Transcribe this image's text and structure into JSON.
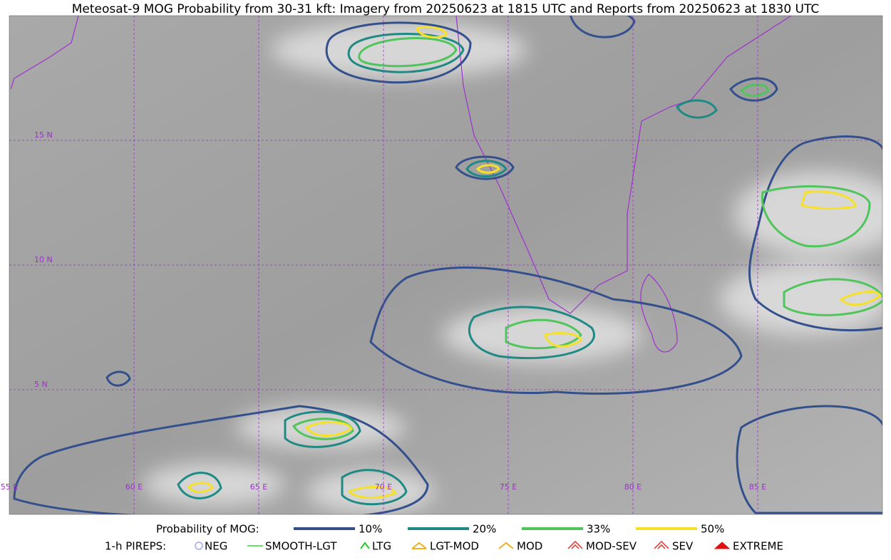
{
  "header": {
    "title": "Meteosat-9 MOG Probability from 30-31 kft: Imagery from 20250623 at 1815 UTC and Reports from 20250623 at 1830 UTC"
  },
  "map": {
    "lat_labels": [
      "15 N",
      "10 N",
      "5 N"
    ],
    "lon_labels": [
      "55 E",
      "60 E",
      "65 E",
      "70 E",
      "75 E",
      "80 E",
      "85 E"
    ]
  },
  "legend": {
    "probability": {
      "title": "Probability of MOG:",
      "items": [
        {
          "label": "10%",
          "color": "#34508c"
        },
        {
          "label": "20%",
          "color": "#1f8a84"
        },
        {
          "label": "33%",
          "color": "#4fc55c"
        },
        {
          "label": "50%",
          "color": "#f5e12a"
        }
      ]
    },
    "pireps": {
      "title": "1-h PIREPS:",
      "items": [
        {
          "label": "NEG",
          "color": "#b8b8f0"
        },
        {
          "label": "SMOOTH-LGT",
          "color": "#33dd33"
        },
        {
          "label": "LTG",
          "color": "#22cc22"
        },
        {
          "label": "LGT-MOD",
          "color": "#f0b020"
        },
        {
          "label": "MOD",
          "color": "#f0b020"
        },
        {
          "label": "MOD-SEV",
          "color": "#e03030"
        },
        {
          "label": "SEV",
          "color": "#e03030"
        },
        {
          "label": "EXTREME",
          "color": "#e01010"
        }
      ]
    }
  }
}
